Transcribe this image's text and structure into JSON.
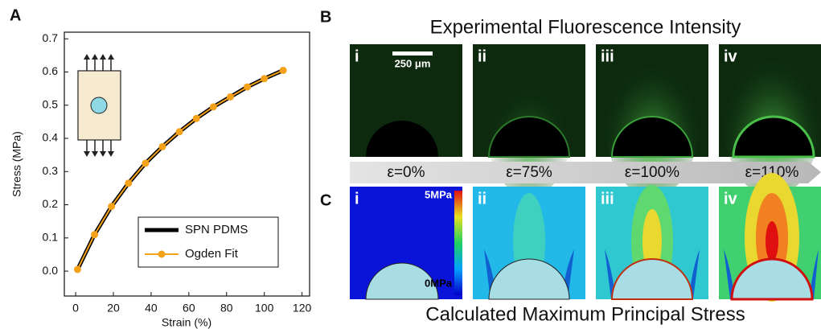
{
  "chart_data": {
    "type": "line",
    "panel_label": "A",
    "x_label": "Strain (%)",
    "y_label": "Stress (MPa)",
    "x": [
      1,
      10,
      19,
      28,
      37,
      46,
      55,
      64,
      73,
      82,
      91,
      100,
      110
    ],
    "series": [
      {
        "name": "SPN PDMS",
        "color": "#000000",
        "values": [
          0.005,
          0.11,
          0.195,
          0.265,
          0.325,
          0.375,
          0.42,
          0.46,
          0.495,
          0.525,
          0.555,
          0.58,
          0.605
        ]
      },
      {
        "name": "Ogden Fit",
        "color": "#f5a21b",
        "values": [
          0.005,
          0.11,
          0.195,
          0.265,
          0.325,
          0.375,
          0.42,
          0.46,
          0.495,
          0.525,
          0.555,
          0.58,
          0.605
        ],
        "markers": true
      }
    ],
    "xlim": [
      -6,
      124
    ],
    "ylim": [
      -0.075,
      0.72
    ],
    "xticks": [
      0,
      20,
      40,
      60,
      80,
      100,
      120
    ],
    "yticks": [
      {
        "value": 0,
        "label": "0.0"
      },
      0.1,
      0.2,
      0.3,
      0.4,
      0.5,
      0.6,
      0.7
    ],
    "legend": "lower-right"
  },
  "fluorescence": {
    "panel_label": "B",
    "title": "Experimental Fluorescence Intensity",
    "panels": [
      "i",
      "ii",
      "iii",
      "iv"
    ],
    "scale_bar": "250 μm"
  },
  "strain_labels": [
    "ε=0%",
    "ε=75%",
    "ε=100%",
    "ε=110%"
  ],
  "stress": {
    "panel_label": "C",
    "title": "Calculated Maximum Principal Stress",
    "panels": [
      "i",
      "ii",
      "iii",
      "iv"
    ],
    "colorbar_max": "5MPa",
    "colorbar_min": "0MPa"
  }
}
